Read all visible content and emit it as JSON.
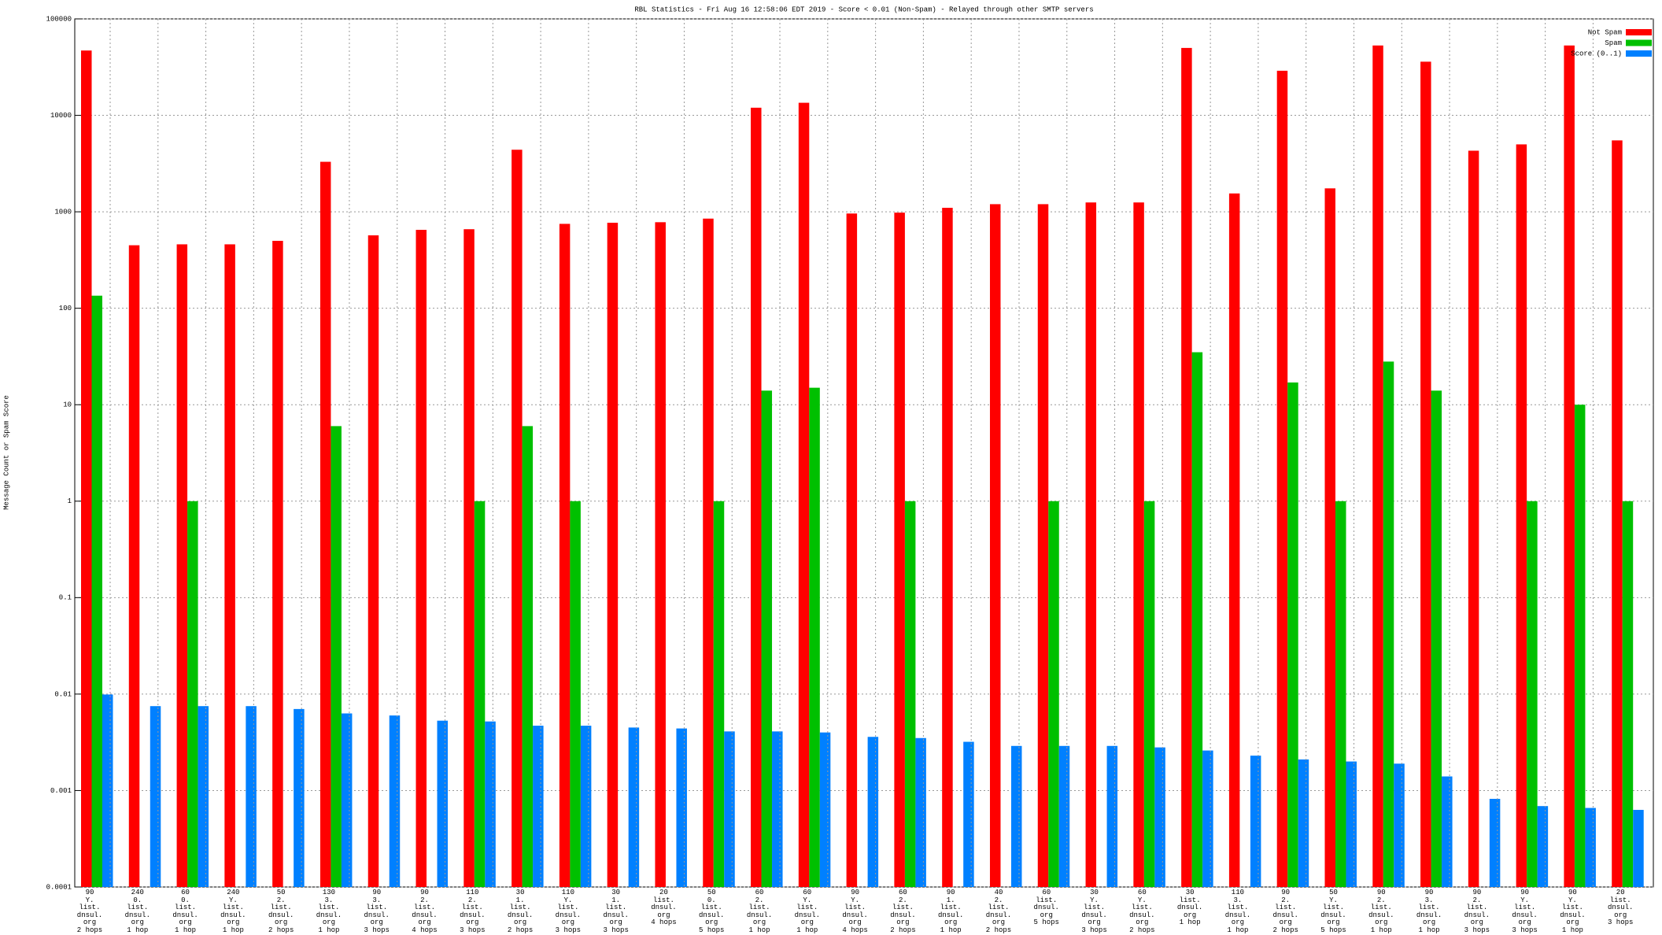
{
  "chart_data": {
    "type": "bar",
    "title": "RBL Statistics - Fri Aug 16 12:58:06 EDT 2019 - Score < 0.01 (Non-Spam) - Relayed through other SMTP servers",
    "y_label": "Message Count or Spam Score",
    "log_scale": true,
    "grid": true,
    "legend": "top-right",
    "ylim": [
      0.0001,
      100000
    ],
    "yticks": [
      0.0001,
      0.001,
      0.01,
      0.1,
      1,
      10,
      100,
      1000,
      10000,
      100000
    ],
    "categories": [
      "90\nY.\nlist.\ndnsul.\norg\n2 hops",
      "240\n0.\nlist.\ndnsul.\norg\n1 hop",
      "60\n0.\nlist.\ndnsul.\norg\n1 hop",
      "240\nY.\nlist.\ndnsul.\norg\n1 hop",
      "50\n2.\nlist.\ndnsul.\norg\n2 hops",
      "130\n3.\nlist.\ndnsul.\norg\n1 hop",
      "90\n3.\nlist.\ndnsul.\norg\n3 hops",
      "90\n2.\nlist.\ndnsul.\norg\n4 hops",
      "110\n2.\nlist.\ndnsul.\norg\n3 hops",
      "30\n1.\nlist.\ndnsul.\norg\n2 hops",
      "110\nY.\nlist.\ndnsul.\norg\n3 hops",
      "30\n1.\nlist.\ndnsul.\norg\n3 hops",
      "20\nlist.\ndnsul.\norg\n4 hops",
      "50\n0.\nlist.\ndnsul.\norg\n5 hops",
      "60\n2.\nlist.\ndnsul.\norg\n1 hop",
      "60\nY.\nlist.\ndnsul.\norg\n1 hop",
      "90\nY.\nlist.\ndnsul.\norg\n4 hops",
      "60\n2.\nlist.\ndnsul.\norg\n2 hops",
      "90\n1.\nlist.\ndnsul.\norg\n1 hop",
      "40\n2.\nlist.\ndnsul.\norg\n2 hops",
      "60\nlist.\ndnsul.\norg\n5 hops",
      "30\nY.\nlist.\ndnsul.\norg\n3 hops",
      "60\nY.\nlist.\ndnsul.\norg\n2 hops",
      "30\nlist.\ndnsul.\norg\n1 hop",
      "110\n3.\nlist.\ndnsul.\norg\n1 hop",
      "90\n2.\nlist.\ndnsul.\norg\n2 hops",
      "50\nY.\nlist.\ndnsul.\norg\n5 hops",
      "90\n2.\nlist.\ndnsul.\norg\n1 hop",
      "90\n3.\nlist.\ndnsul.\norg\n1 hop",
      "90\n2.\nlist.\ndnsul.\norg\n3 hops",
      "90\nY.\nlist.\ndnsul.\norg\n3 hops",
      "90\nY.\nlist.\ndnsul.\norg\n1 hop",
      "20\nlist.\ndnsul.\norg\n3 hops"
    ],
    "series": [
      {
        "name": "Not Spam",
        "color": "#ff0000",
        "values": [
          47000,
          450,
          460,
          460,
          500,
          3300,
          570,
          650,
          660,
          4400,
          750,
          770,
          780,
          850,
          12000,
          13500,
          960,
          980,
          1100,
          1200,
          1200,
          1250,
          1250,
          50000,
          1550,
          29000,
          1750,
          53000,
          36000,
          4300,
          5000,
          53000,
          5500
        ]
      },
      {
        "name": "Spam",
        "color": "#00c000",
        "values": [
          135,
          null,
          1,
          null,
          null,
          6,
          null,
          null,
          1,
          6,
          1,
          null,
          null,
          1,
          14,
          15,
          null,
          1,
          null,
          null,
          1,
          null,
          1,
          35,
          null,
          17,
          1,
          28,
          14,
          null,
          1,
          10,
          1
        ]
      },
      {
        "name": "Score (0..1)",
        "color": "#0080ff",
        "values": [
          0.0099,
          0.0075,
          0.0075,
          0.0075,
          0.007,
          0.0063,
          0.006,
          0.0053,
          0.0052,
          0.0047,
          0.0047,
          0.0045,
          0.0044,
          0.0041,
          0.0041,
          0.004,
          0.0036,
          0.0035,
          0.0032,
          0.0029,
          0.0029,
          0.0029,
          0.0028,
          0.0026,
          0.0023,
          0.0021,
          0.002,
          0.0019,
          0.0014,
          0.00082,
          0.00069,
          0.00066,
          0.00063
        ]
      }
    ]
  }
}
